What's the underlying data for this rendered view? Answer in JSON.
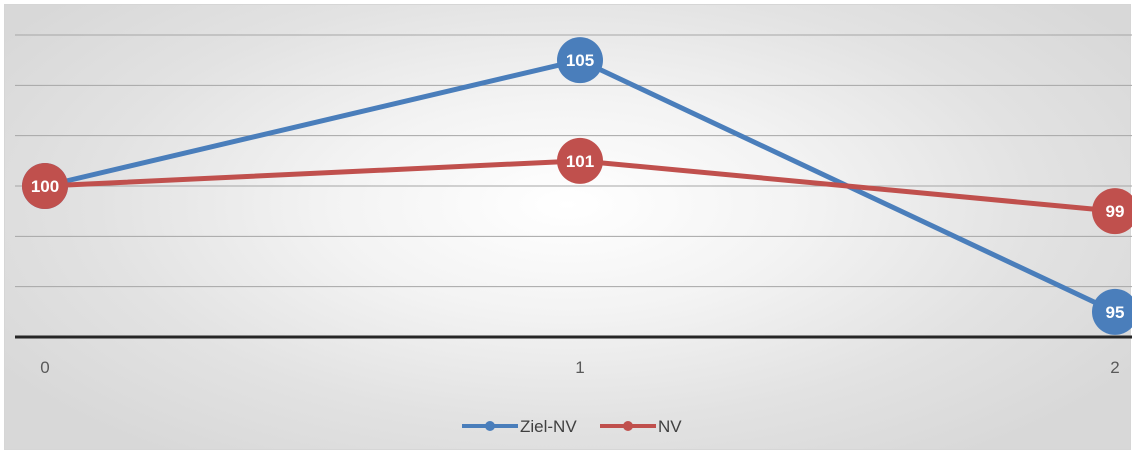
{
  "chart_data": {
    "type": "line",
    "x": [
      0,
      1,
      2
    ],
    "series": [
      {
        "name": "Ziel-NV",
        "values": [
          100,
          105,
          95
        ],
        "color": "#4a7ebb"
      },
      {
        "name": "NV",
        "values": [
          100,
          101,
          99
        ],
        "color": "#c0504d"
      }
    ],
    "xlabel": "",
    "ylabel": "",
    "x_tick_labels": [
      "0",
      "1",
      "2"
    ],
    "ylim": [
      94,
      106
    ],
    "y_gridline_step": 2,
    "y_tick_labels_visible": false,
    "grid": true,
    "legend": {
      "position": "bottom"
    },
    "axis_color": "#262626",
    "gridline_color": "#a6a6a6"
  }
}
